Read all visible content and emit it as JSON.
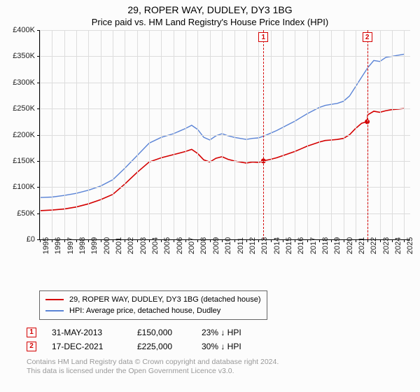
{
  "title": "29, ROPER WAY, DUDLEY, DY3 1BG",
  "subtitle": "Price paid vs. HM Land Registry's House Price Index (HPI)",
  "chart": {
    "type": "line",
    "background": "#fcfcfc",
    "grid_color": "#dddddd",
    "axis_color": "#000000",
    "y": {
      "min": 0,
      "max": 400000,
      "step": 50000,
      "labels": [
        "£0",
        "£50K",
        "£100K",
        "£150K",
        "£200K",
        "£250K",
        "£300K",
        "£350K",
        "£400K"
      ],
      "label_color": "#222222",
      "label_fontsize": 11
    },
    "x": {
      "min": 1995,
      "max": 2025.5,
      "labels": [
        "1995",
        "1996",
        "1997",
        "1998",
        "1999",
        "2000",
        "2001",
        "2002",
        "2003",
        "2004",
        "2005",
        "2006",
        "2007",
        "2008",
        "2009",
        "2010",
        "2011",
        "2012",
        "2013",
        "2014",
        "2015",
        "2016",
        "2017",
        "2018",
        "2019",
        "2020",
        "2021",
        "2022",
        "2023",
        "2024",
        "2025"
      ],
      "label_color": "#222222",
      "label_fontsize": 11
    },
    "series": [
      {
        "name": "29, ROPER WAY, DUDLEY, DY3 1BG (detached house)",
        "color": "#d40000",
        "width": 1.6,
        "points": [
          [
            1995,
            55000
          ],
          [
            1996,
            56000
          ],
          [
            1997,
            58000
          ],
          [
            1998,
            62000
          ],
          [
            1999,
            68000
          ],
          [
            2000,
            76000
          ],
          [
            2001,
            86000
          ],
          [
            2002,
            106000
          ],
          [
            2003,
            128000
          ],
          [
            2004,
            148000
          ],
          [
            2005,
            156000
          ],
          [
            2006,
            162000
          ],
          [
            2007,
            168000
          ],
          [
            2007.5,
            172000
          ],
          [
            2008,
            164000
          ],
          [
            2008.5,
            152000
          ],
          [
            2009,
            148000
          ],
          [
            2009.5,
            155000
          ],
          [
            2010,
            158000
          ],
          [
            2010.5,
            153000
          ],
          [
            2011,
            150000
          ],
          [
            2011.5,
            148000
          ],
          [
            2012,
            146000
          ],
          [
            2012.5,
            148000
          ],
          [
            2013,
            147000
          ],
          [
            2013.4,
            150000
          ],
          [
            2014,
            153000
          ],
          [
            2014.5,
            156000
          ],
          [
            2015,
            160000
          ],
          [
            2015.5,
            164000
          ],
          [
            2016,
            168000
          ],
          [
            2016.5,
            173000
          ],
          [
            2017,
            178000
          ],
          [
            2017.5,
            182000
          ],
          [
            2018,
            186000
          ],
          [
            2018.5,
            189000
          ],
          [
            2019,
            190000
          ],
          [
            2019.5,
            191000
          ],
          [
            2020,
            193000
          ],
          [
            2020.5,
            200000
          ],
          [
            2021,
            212000
          ],
          [
            2021.5,
            222000
          ],
          [
            2021.96,
            225000
          ],
          [
            2022,
            238000
          ],
          [
            2022.5,
            245000
          ],
          [
            2023,
            243000
          ],
          [
            2023.5,
            246000
          ],
          [
            2024,
            248000
          ],
          [
            2024.5,
            249000
          ],
          [
            2025,
            250000
          ]
        ]
      },
      {
        "name": "HPI: Average price, detached house, Dudley",
        "color": "#5b84d6",
        "width": 1.4,
        "points": [
          [
            1995,
            80000
          ],
          [
            1996,
            81000
          ],
          [
            1997,
            84000
          ],
          [
            1998,
            88000
          ],
          [
            1999,
            94000
          ],
          [
            2000,
            102000
          ],
          [
            2001,
            114000
          ],
          [
            2002,
            136000
          ],
          [
            2003,
            160000
          ],
          [
            2004,
            184000
          ],
          [
            2005,
            195000
          ],
          [
            2006,
            202000
          ],
          [
            2007,
            212000
          ],
          [
            2007.5,
            218000
          ],
          [
            2008,
            210000
          ],
          [
            2008.5,
            195000
          ],
          [
            2009,
            190000
          ],
          [
            2009.5,
            198000
          ],
          [
            2010,
            202000
          ],
          [
            2010.5,
            198000
          ],
          [
            2011,
            195000
          ],
          [
            2011.5,
            193000
          ],
          [
            2012,
            191000
          ],
          [
            2012.5,
            193000
          ],
          [
            2013,
            194000
          ],
          [
            2013.5,
            198000
          ],
          [
            2014,
            203000
          ],
          [
            2014.5,
            208000
          ],
          [
            2015,
            214000
          ],
          [
            2015.5,
            220000
          ],
          [
            2016,
            226000
          ],
          [
            2016.5,
            233000
          ],
          [
            2017,
            240000
          ],
          [
            2017.5,
            246000
          ],
          [
            2018,
            252000
          ],
          [
            2018.5,
            256000
          ],
          [
            2019,
            258000
          ],
          [
            2019.5,
            260000
          ],
          [
            2020,
            264000
          ],
          [
            2020.5,
            274000
          ],
          [
            2021,
            292000
          ],
          [
            2021.5,
            310000
          ],
          [
            2022,
            328000
          ],
          [
            2022.5,
            342000
          ],
          [
            2023,
            340000
          ],
          [
            2023.5,
            348000
          ],
          [
            2024,
            350000
          ],
          [
            2024.5,
            352000
          ],
          [
            2025,
            354000
          ]
        ]
      }
    ],
    "sale_markers": [
      {
        "num": "1",
        "x": 2013.41,
        "box_color": "#d40000",
        "line_color": "#d40000",
        "dot_y": 150000,
        "dot_color": "#d40000"
      },
      {
        "num": "2",
        "x": 2021.96,
        "box_color": "#d40000",
        "line_color": "#d40000",
        "dot_y": 225000,
        "dot_color": "#d40000"
      }
    ]
  },
  "legend": {
    "border_color": "#666666",
    "items": [
      {
        "color": "#d40000",
        "label": "29, ROPER WAY, DUDLEY, DY3 1BG (detached house)"
      },
      {
        "color": "#5b84d6",
        "label": "HPI: Average price, detached house, Dudley"
      }
    ]
  },
  "sales": [
    {
      "num": "1",
      "color": "#d40000",
      "date": "31-MAY-2013",
      "price": "£150,000",
      "diff": "23% ↓ HPI"
    },
    {
      "num": "2",
      "color": "#d40000",
      "date": "17-DEC-2021",
      "price": "£225,000",
      "diff": "30% ↓ HPI"
    }
  ],
  "footer_line1": "Contains HM Land Registry data © Crown copyright and database right 2024.",
  "footer_line2": "This data is licensed under the Open Government Licence v3.0.",
  "footer_color": "#999999"
}
